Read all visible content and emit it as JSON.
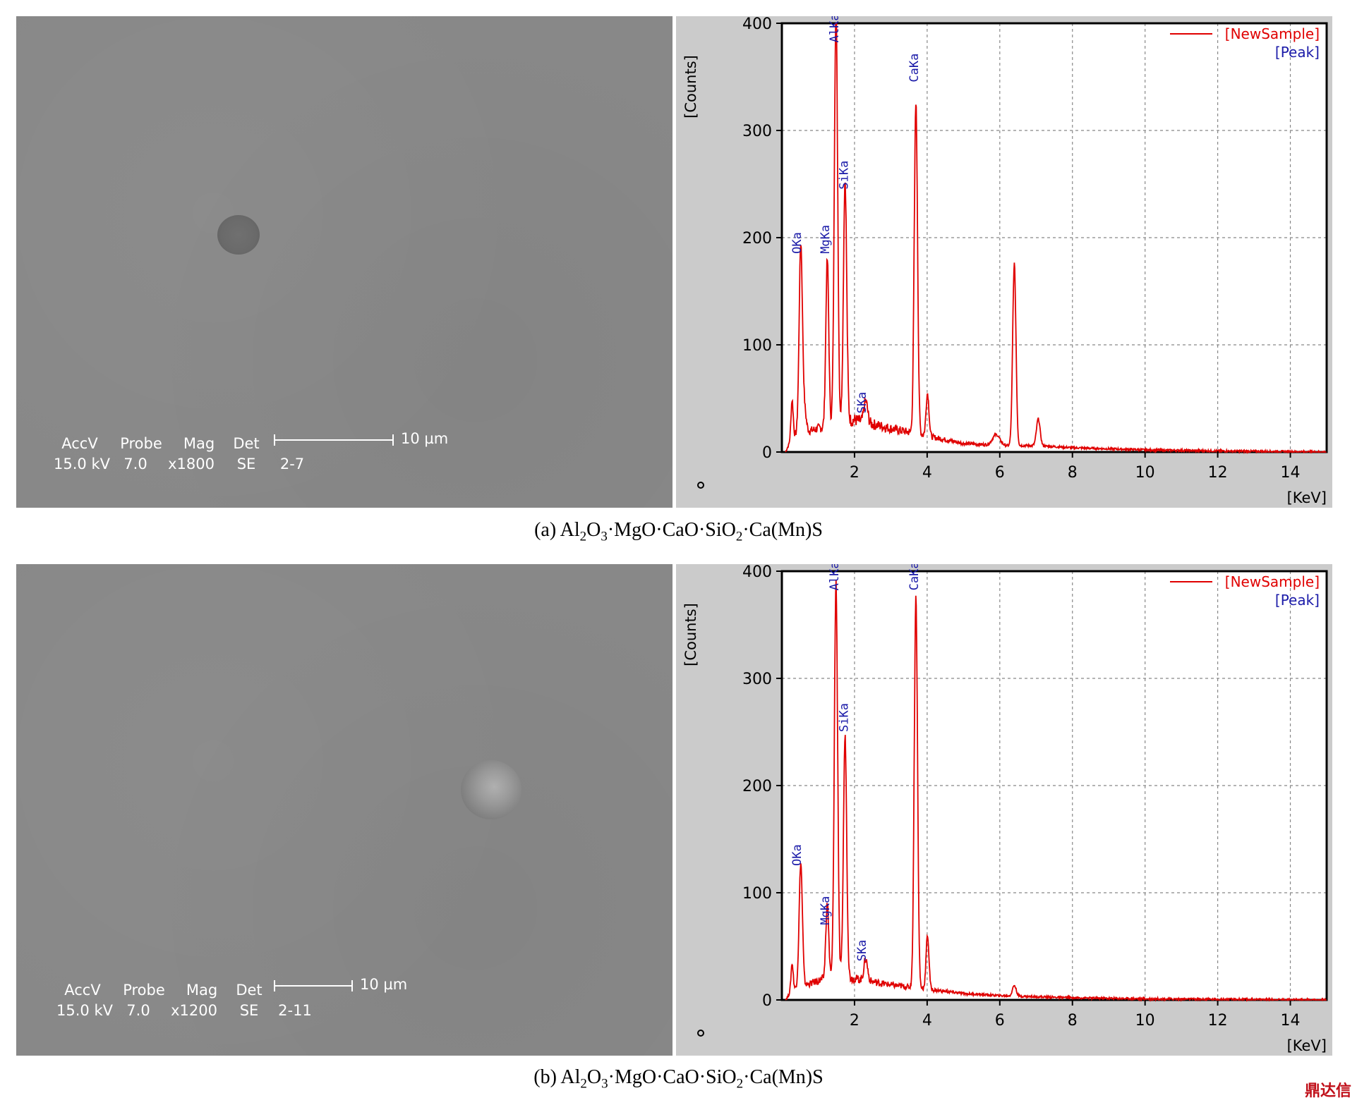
{
  "panels": [
    {
      "sem": {
        "accv_label": "AccV",
        "probe_label": "Probe",
        "mag_label": "Mag",
        "det_label": "Det",
        "accv": "15.0 kV",
        "probe": "7.0",
        "mag": "x1800",
        "det": "SE",
        "id": "2-7",
        "scale": "10 µm"
      },
      "caption": {
        "label": "(a) Al",
        "sub1": "2",
        "mid1": "O",
        "sub2": "3",
        "mid2": "·MgO·CaO·SiO",
        "sub3": "2",
        "tail": "·Ca(Mn)S"
      }
    },
    {
      "sem": {
        "accv_label": "AccV",
        "probe_label": "Probe",
        "mag_label": "Mag",
        "det_label": "Det",
        "accv": "15.0 kV",
        "probe": "7.0",
        "mag": "x1200",
        "det": "SE",
        "id": "2-11",
        "scale": "10 µm"
      },
      "caption": {
        "label": "(b) Al",
        "sub1": "2",
        "mid1": "O",
        "sub2": "3",
        "mid2": "·MgO·CaO·SiO",
        "sub3": "2",
        "tail": "·Ca(Mn)S"
      }
    }
  ],
  "chart_data": [
    {
      "type": "line",
      "ylabel": "[Counts]",
      "xlabel": "[KeV]",
      "xlim": [
        0,
        15
      ],
      "ylim": [
        0,
        400
      ],
      "xticks": [
        2,
        4,
        6,
        8,
        10,
        12,
        14
      ],
      "yticks": [
        0,
        100,
        200,
        300,
        400
      ],
      "grid": true,
      "legend_position": "top-right",
      "legend": [
        "[NewSample]",
        "[Peak]"
      ],
      "series": [
        {
          "name": "[NewSample]",
          "color": "#e00000",
          "peaks": [
            [
              0.28,
              35,
              0.03
            ],
            [
              0.52,
              175,
              0.045
            ],
            [
              0.62,
              20,
              0.05
            ],
            [
              1.25,
              155,
              0.04
            ],
            [
              1.49,
              390,
              0.045
            ],
            [
              1.74,
              225,
              0.045
            ],
            [
              2.31,
              20,
              0.05
            ],
            [
              3.69,
              310,
              0.045
            ],
            [
              4.01,
              40,
              0.04
            ],
            [
              5.9,
              10,
              0.1
            ],
            [
              6.4,
              170,
              0.045
            ],
            [
              7.06,
              25,
              0.05
            ]
          ],
          "background": [
            [
              0.1,
              0
            ],
            [
              0.3,
              15
            ],
            [
              1.3,
              25
            ],
            [
              2,
              30
            ],
            [
              3,
              22
            ],
            [
              4,
              15
            ],
            [
              5,
              8
            ],
            [
              6,
              6
            ],
            [
              7,
              6
            ],
            [
              8,
              4
            ],
            [
              10,
              2
            ],
            [
              12,
              1
            ],
            [
              15,
              0
            ]
          ]
        }
      ],
      "peak_labels": [
        {
          "text": "OKa",
          "x": 0.52,
          "y": 185
        },
        {
          "text": "MgKa",
          "x": 1.3,
          "y": 185
        },
        {
          "text": "AlKa",
          "x": 1.55,
          "y": 382
        },
        {
          "text": "SiKa",
          "x": 1.82,
          "y": 245
        },
        {
          "text": "SKa",
          "x": 2.31,
          "y": 36
        },
        {
          "text": "CaKa",
          "x": 3.75,
          "y": 345
        }
      ]
    },
    {
      "type": "line",
      "ylabel": "[Counts]",
      "xlabel": "[KeV]",
      "xlim": [
        0,
        15
      ],
      "ylim": [
        0,
        400
      ],
      "xticks": [
        2,
        4,
        6,
        8,
        10,
        12,
        14
      ],
      "yticks": [
        0,
        100,
        200,
        300,
        400
      ],
      "grid": true,
      "legend_position": "top-right",
      "legend": [
        "[NewSample]",
        "[Peak]"
      ],
      "series": [
        {
          "name": "[NewSample]",
          "color": "#e00000",
          "peaks": [
            [
              0.28,
              25,
              0.03
            ],
            [
              0.52,
              115,
              0.045
            ],
            [
              1.25,
              70,
              0.04
            ],
            [
              1.49,
              370,
              0.045
            ],
            [
              1.74,
              225,
              0.045
            ],
            [
              2.31,
              20,
              0.05
            ],
            [
              3.69,
              365,
              0.045
            ],
            [
              4.01,
              50,
              0.04
            ],
            [
              6.4,
              10,
              0.05
            ]
          ],
          "background": [
            [
              0.1,
              0
            ],
            [
              0.3,
              10
            ],
            [
              1.2,
              20
            ],
            [
              2,
              20
            ],
            [
              3,
              14
            ],
            [
              4,
              10
            ],
            [
              5,
              6
            ],
            [
              6,
              4
            ],
            [
              7,
              3
            ],
            [
              8,
              2
            ],
            [
              10,
              1
            ],
            [
              15,
              0
            ]
          ]
        }
      ],
      "peak_labels": [
        {
          "text": "OKa",
          "x": 0.52,
          "y": 125
        },
        {
          "text": "MgKa",
          "x": 1.3,
          "y": 70
        },
        {
          "text": "AlKa",
          "x": 1.55,
          "y": 382
        },
        {
          "text": "SiKa",
          "x": 1.82,
          "y": 250
        },
        {
          "text": "SKa",
          "x": 2.31,
          "y": 36
        },
        {
          "text": "CaKa",
          "x": 3.75,
          "y": 382
        }
      ]
    }
  ],
  "watermark": "鼎达信"
}
